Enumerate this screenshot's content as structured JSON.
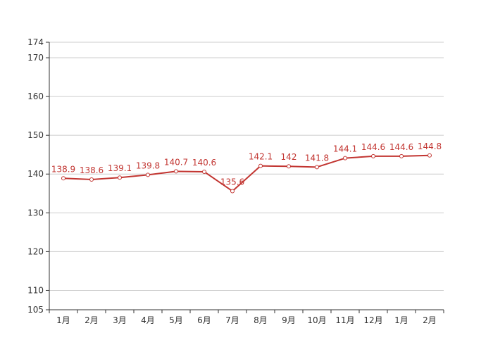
{
  "chart_data": {
    "type": "line",
    "categories": [
      "1月",
      "2月",
      "3月",
      "4月",
      "5月",
      "6月",
      "7月",
      "8月",
      "9月",
      "10月",
      "11月",
      "12月",
      "1月",
      "2月"
    ],
    "series": [
      {
        "values": [
          138.9,
          138.6,
          139.1,
          139.8,
          140.7,
          140.6,
          135.6,
          142.1,
          142,
          141.8,
          144.1,
          144.6,
          144.6,
          144.8
        ],
        "data_labels": [
          "138.9",
          "138.6",
          "139.1",
          "139.8",
          "140.7",
          "140.6",
          "135.6",
          "142.1",
          "142",
          "141.8",
          "144.1",
          "144.6",
          "144.6",
          "144.8"
        ]
      }
    ],
    "ylim": [
      105,
      174
    ],
    "y_ticks": [
      105,
      110,
      120,
      130,
      140,
      150,
      160,
      170,
      174
    ],
    "y_tick_labels": [
      "105",
      "110",
      "120",
      "130",
      "140",
      "150",
      "160",
      "170",
      "174"
    ],
    "grid": true,
    "title": "",
    "xlabel": "",
    "ylabel": "",
    "colors": {
      "series": "#c23531",
      "grid": "#cccccc",
      "axis": "#333333"
    }
  }
}
